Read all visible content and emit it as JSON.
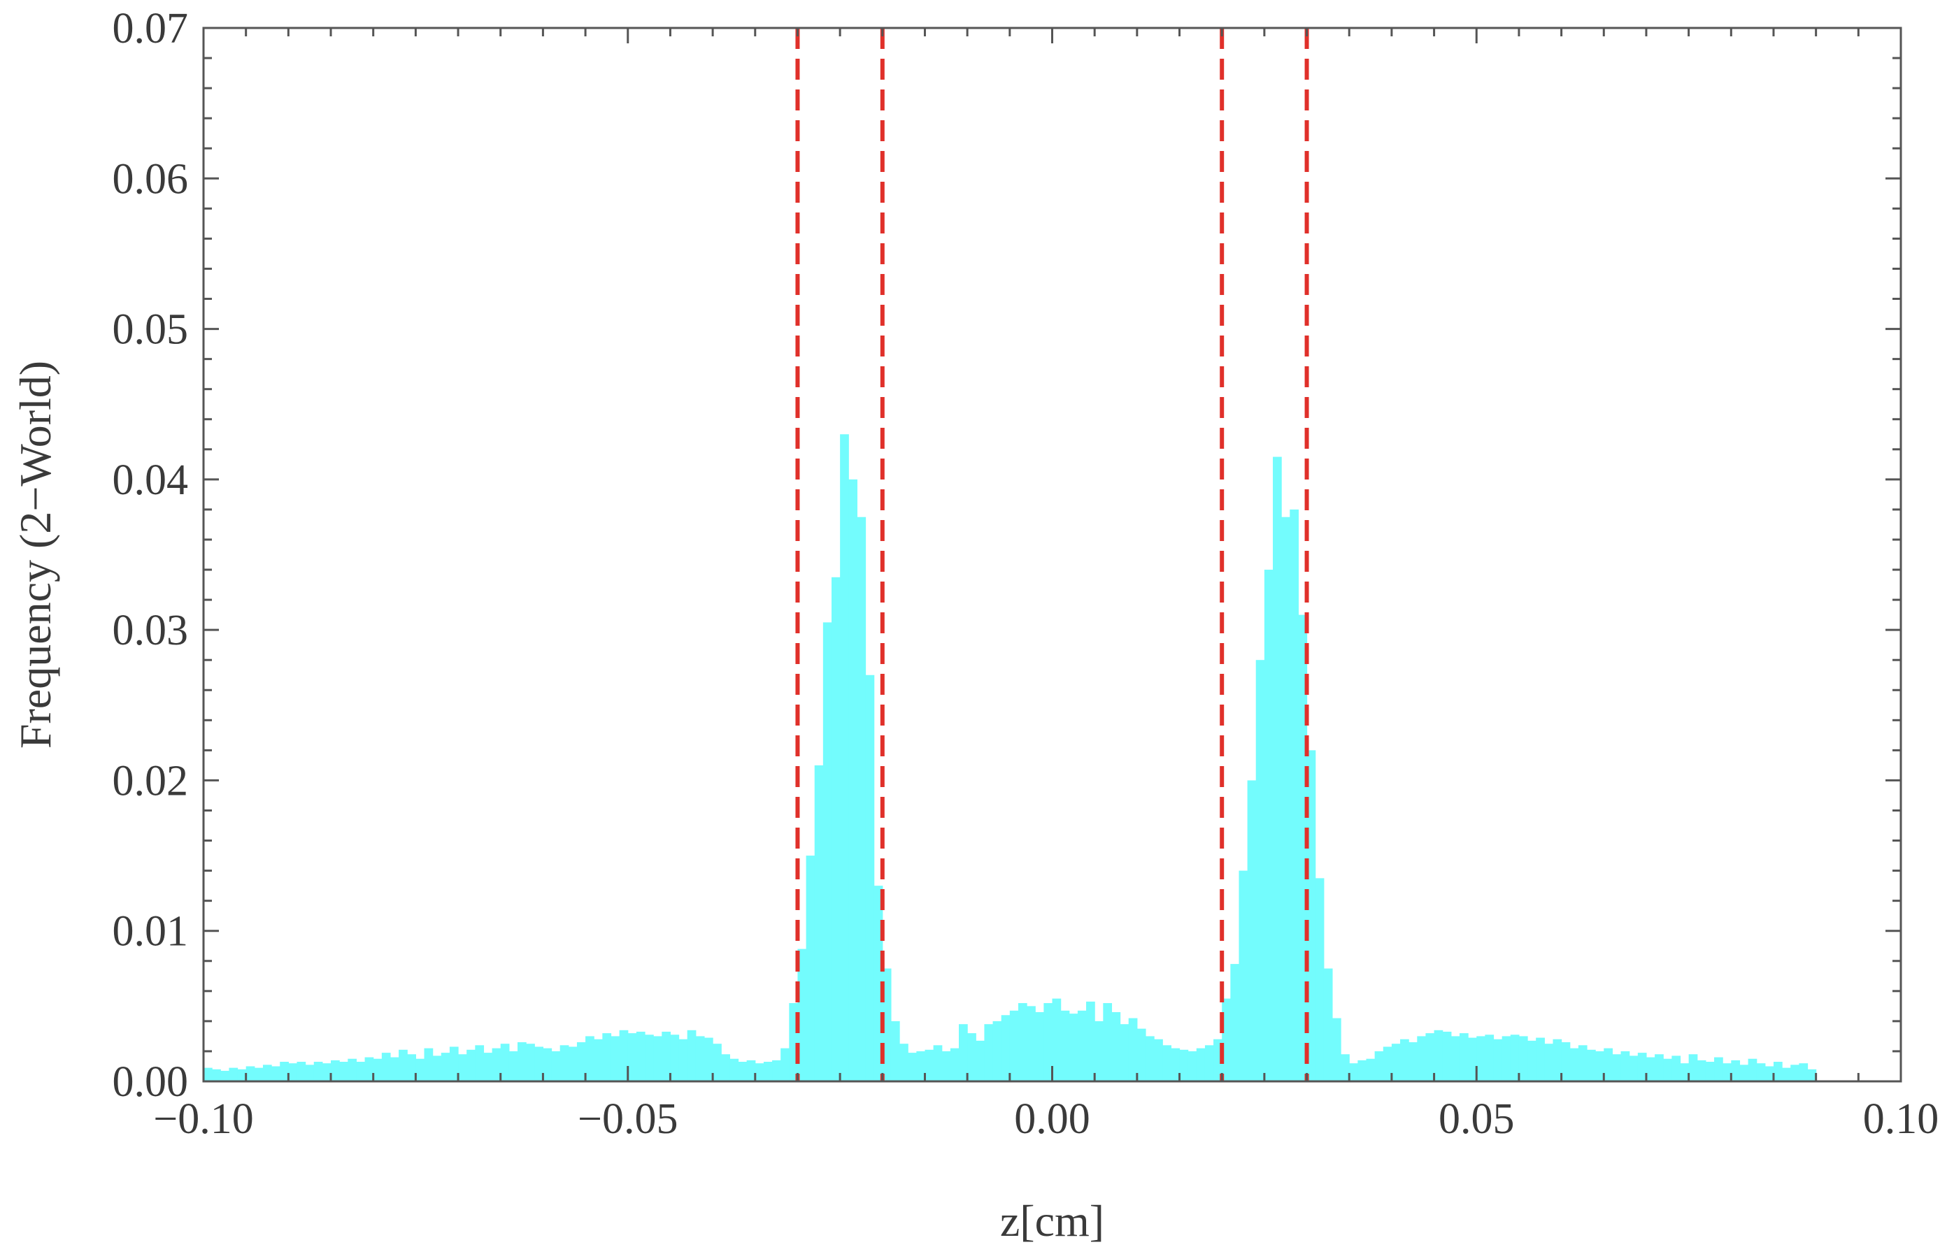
{
  "chart_data": {
    "type": "bar",
    "title": "",
    "xlabel": "z[cm]",
    "ylabel": "Frequency (2−World)",
    "xlim": [
      -0.1,
      0.1
    ],
    "ylim": [
      0,
      0.07
    ],
    "grid": false,
    "bin_width": 0.001,
    "x_ticks": [
      -0.1,
      -0.05,
      0.0,
      0.05,
      0.1
    ],
    "x_tick_labels": [
      "−0.10",
      "−0.05",
      "0.00",
      "0.05",
      "0.10"
    ],
    "y_ticks": [
      0,
      0.01,
      0.02,
      0.03,
      0.04,
      0.05,
      0.06,
      0.07
    ],
    "y_tick_labels": [
      "0.00",
      "0.01",
      "0.02",
      "0.03",
      "0.04",
      "0.05",
      "0.06",
      "0.07"
    ],
    "bar_color": "#73FCFD",
    "reference_line_color": "#E0302A",
    "reference_lines_x": [
      -0.03,
      -0.02,
      0.02,
      0.03
    ],
    "series": [
      {
        "x_start": -0.1,
        "values": [
          0.0009,
          0.0008,
          0.0007,
          0.0009,
          0.0008,
          0.001,
          0.0009,
          0.0011,
          0.001,
          0.0013,
          0.0012,
          0.0013,
          0.0011,
          0.0013,
          0.0012,
          0.0014,
          0.0013,
          0.0015,
          0.0013,
          0.0016,
          0.0015,
          0.0019,
          0.0016,
          0.0021,
          0.0018,
          0.0015,
          0.0022,
          0.0017,
          0.0019,
          0.0023,
          0.0018,
          0.0021,
          0.0024,
          0.0019,
          0.0022,
          0.0025,
          0.002,
          0.0026,
          0.0025,
          0.0023,
          0.0022,
          0.002,
          0.0024,
          0.0023,
          0.0026,
          0.003,
          0.0028,
          0.0032,
          0.003,
          0.0034,
          0.0032,
          0.0033,
          0.0031,
          0.003,
          0.0033,
          0.0031,
          0.0028,
          0.0034,
          0.003,
          0.0029,
          0.0025,
          0.0018,
          0.0015,
          0.0013,
          0.0014,
          0.0012,
          0.0013,
          0.0014,
          0.0022,
          0.0052,
          0.0088,
          0.015,
          0.021,
          0.0305,
          0.0335,
          0.043,
          0.04,
          0.0375,
          0.027,
          0.013,
          0.0075,
          0.004,
          0.0025,
          0.0019,
          0.002,
          0.0021,
          0.0024,
          0.002,
          0.0022,
          0.0038,
          0.0032,
          0.0027,
          0.0038,
          0.004,
          0.0044,
          0.0047,
          0.0052,
          0.005,
          0.0046,
          0.0052,
          0.0055,
          0.0047,
          0.0045,
          0.0047,
          0.0053,
          0.004,
          0.0052,
          0.0046,
          0.0038,
          0.0042,
          0.0035,
          0.003,
          0.0028,
          0.0024,
          0.0022,
          0.0021,
          0.002,
          0.0022,
          0.0024,
          0.0028,
          0.0055,
          0.0078,
          0.014,
          0.02,
          0.028,
          0.034,
          0.0415,
          0.0375,
          0.038,
          0.031,
          0.022,
          0.0135,
          0.0075,
          0.0042,
          0.0018,
          0.0012,
          0.0014,
          0.0015,
          0.002,
          0.0023,
          0.0025,
          0.0028,
          0.0026,
          0.003,
          0.0032,
          0.0034,
          0.0033,
          0.003,
          0.0032,
          0.0029,
          0.003,
          0.0031,
          0.0028,
          0.003,
          0.0031,
          0.003,
          0.0027,
          0.0029,
          0.0025,
          0.0028,
          0.0026,
          0.0022,
          0.0024,
          0.0021,
          0.002,
          0.0022,
          0.0018,
          0.002,
          0.0017,
          0.0019,
          0.0016,
          0.0018,
          0.0015,
          0.0017,
          0.0012,
          0.0018,
          0.0014,
          0.0013,
          0.0016,
          0.0012,
          0.0014,
          0.0011,
          0.0015,
          0.0012,
          0.001,
          0.0013,
          0.0009,
          0.0011,
          0.0012,
          0.0008
        ]
      }
    ]
  }
}
